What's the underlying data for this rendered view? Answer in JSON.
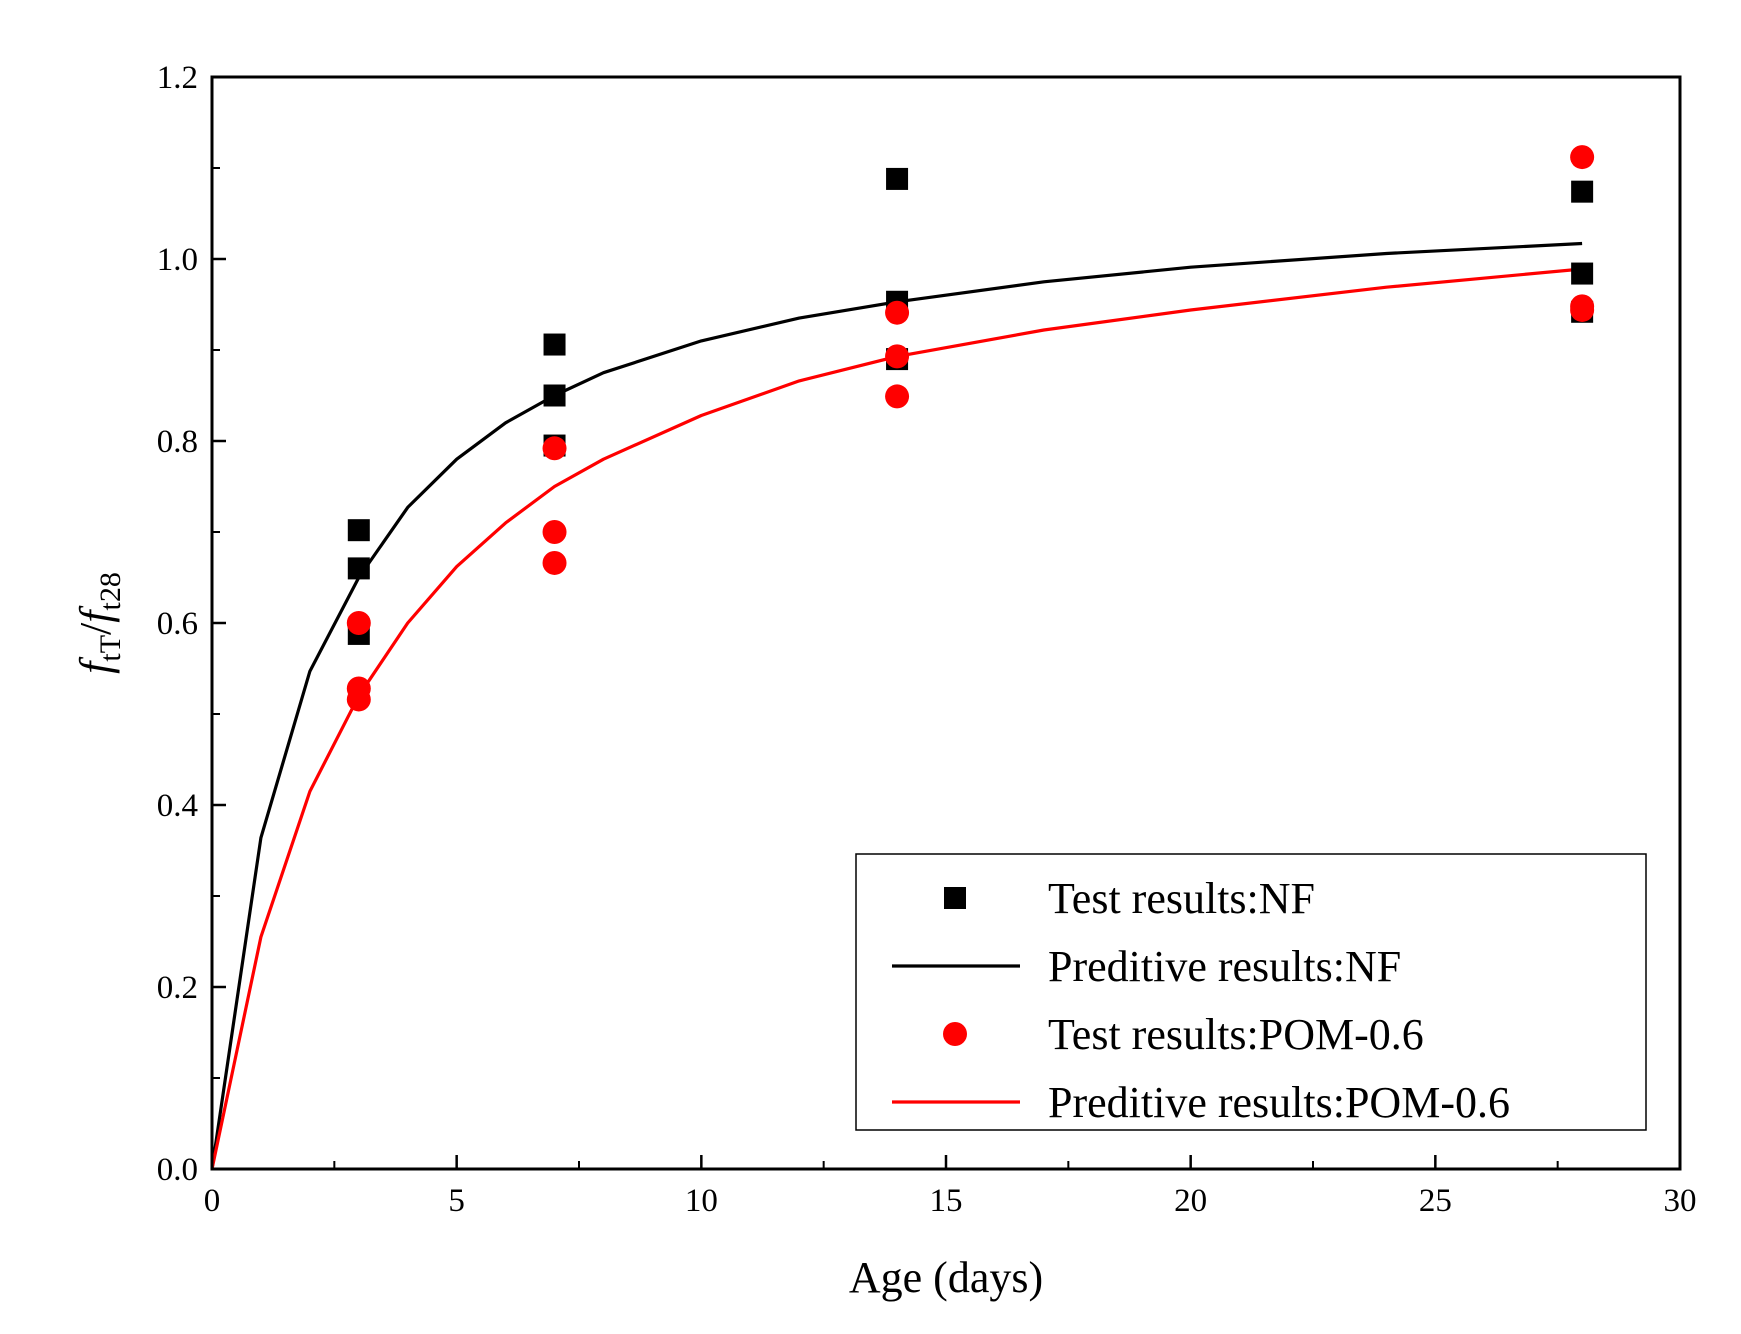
{
  "chart_data": {
    "type": "scatter",
    "title": "",
    "xlabel": "Age (days)",
    "ylabel": {
      "f1": "f",
      "sub1": "tT",
      "slash": "/",
      "f2": "f",
      "sub2": "t28"
    },
    "xlim": [
      0,
      30
    ],
    "ylim": [
      0.0,
      1.2
    ],
    "x_ticks": [
      0,
      5,
      10,
      15,
      20,
      25,
      30
    ],
    "x_tick_labels": [
      "0",
      "5",
      "10",
      "15",
      "20",
      "25",
      "30"
    ],
    "y_ticks": [
      0.0,
      0.2,
      0.4,
      0.6,
      0.8,
      1.0,
      1.2
    ],
    "y_tick_labels": [
      "0.0",
      "0.2",
      "0.4",
      "0.6",
      "0.8",
      "1.0",
      "1.2"
    ],
    "grid": false,
    "legend_position": "bottom-right",
    "series": [
      {
        "name": "Test results:NF",
        "kind": "scatter",
        "marker": "square",
        "color": "#000000",
        "points": [
          {
            "x": 3,
            "y": 0.702
          },
          {
            "x": 3,
            "y": 0.66
          },
          {
            "x": 3,
            "y": 0.588
          },
          {
            "x": 7,
            "y": 0.906
          },
          {
            "x": 7,
            "y": 0.85
          },
          {
            "x": 7,
            "y": 0.795
          },
          {
            "x": 14,
            "y": 1.088
          },
          {
            "x": 14,
            "y": 0.953
          },
          {
            "x": 14,
            "y": 0.89
          },
          {
            "x": 28,
            "y": 1.074
          },
          {
            "x": 28,
            "y": 0.984
          },
          {
            "x": 28,
            "y": 0.942
          }
        ]
      },
      {
        "name": "Preditive results:NF",
        "kind": "line",
        "color": "#000000",
        "points": [
          {
            "x": 0,
            "y": 0.0
          },
          {
            "x": 1,
            "y": 0.364
          },
          {
            "x": 2,
            "y": 0.547
          },
          {
            "x": 3,
            "y": 0.65
          },
          {
            "x": 4,
            "y": 0.727
          },
          {
            "x": 5,
            "y": 0.78
          },
          {
            "x": 6,
            "y": 0.82
          },
          {
            "x": 7,
            "y": 0.85
          },
          {
            "x": 8,
            "y": 0.875
          },
          {
            "x": 10,
            "y": 0.91
          },
          {
            "x": 12,
            "y": 0.935
          },
          {
            "x": 14,
            "y": 0.953
          },
          {
            "x": 17,
            "y": 0.975
          },
          {
            "x": 20,
            "y": 0.991
          },
          {
            "x": 24,
            "y": 1.006
          },
          {
            "x": 28,
            "y": 1.017
          }
        ]
      },
      {
        "name": "Test results:POM-0.6",
        "kind": "scatter",
        "marker": "circle",
        "color": "#ff0000",
        "points": [
          {
            "x": 3,
            "y": 0.6
          },
          {
            "x": 3,
            "y": 0.528
          },
          {
            "x": 3,
            "y": 0.516
          },
          {
            "x": 7,
            "y": 0.792
          },
          {
            "x": 7,
            "y": 0.7
          },
          {
            "x": 7,
            "y": 0.666
          },
          {
            "x": 14,
            "y": 0.941
          },
          {
            "x": 14,
            "y": 0.893
          },
          {
            "x": 14,
            "y": 0.849
          },
          {
            "x": 28,
            "y": 1.112
          },
          {
            "x": 28,
            "y": 0.948
          },
          {
            "x": 28,
            "y": 0.944
          }
        ]
      },
      {
        "name": "Preditive results:POM-0.6",
        "kind": "line",
        "color": "#ff0000",
        "points": [
          {
            "x": 0,
            "y": 0.0
          },
          {
            "x": 1,
            "y": 0.255
          },
          {
            "x": 2,
            "y": 0.415
          },
          {
            "x": 3,
            "y": 0.52
          },
          {
            "x": 4,
            "y": 0.6
          },
          {
            "x": 5,
            "y": 0.662
          },
          {
            "x": 6,
            "y": 0.71
          },
          {
            "x": 7,
            "y": 0.75
          },
          {
            "x": 8,
            "y": 0.78
          },
          {
            "x": 10,
            "y": 0.828
          },
          {
            "x": 12,
            "y": 0.866
          },
          {
            "x": 14,
            "y": 0.893
          },
          {
            "x": 17,
            "y": 0.922
          },
          {
            "x": 20,
            "y": 0.944
          },
          {
            "x": 24,
            "y": 0.969
          },
          {
            "x": 28,
            "y": 0.989
          }
        ]
      }
    ]
  }
}
